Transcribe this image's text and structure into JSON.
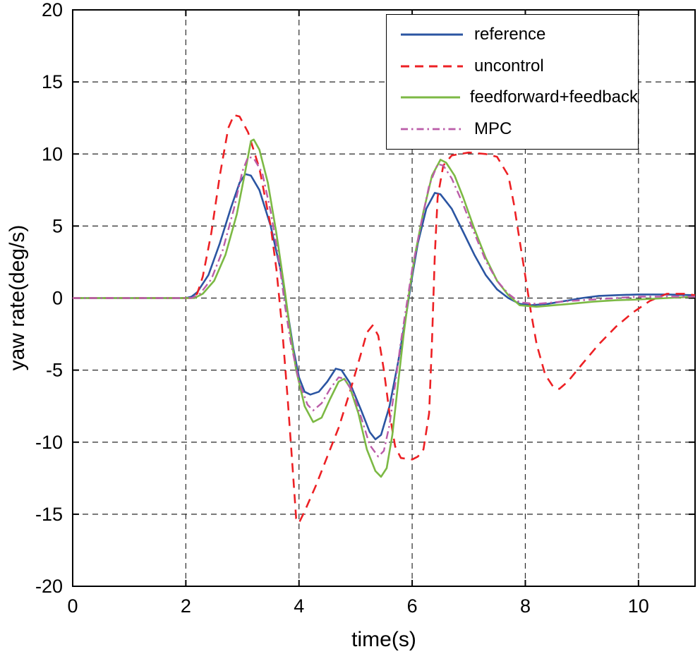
{
  "figure": {
    "background": "#ffffff"
  },
  "chart_data": {
    "type": "line",
    "title": "",
    "xlabel": "time(s)",
    "ylabel": "yaw rate(deg/s)",
    "xlim": [
      0,
      11
    ],
    "ylim": [
      -20,
      20
    ],
    "xticks": [
      0,
      2,
      4,
      6,
      8,
      10
    ],
    "yticks": [
      -20,
      -15,
      -10,
      -5,
      0,
      5,
      10,
      15,
      20
    ],
    "grid": true,
    "grid_style": "dashed",
    "legend_position": "top-right",
    "series": [
      {
        "name": "reference",
        "color": "#2b55a2",
        "style": "solid",
        "width": 2.6,
        "points": [
          [
            0,
            0
          ],
          [
            1.0,
            0
          ],
          [
            2.0,
            0
          ],
          [
            2.1,
            0.1
          ],
          [
            2.2,
            0.4
          ],
          [
            2.4,
            1.6
          ],
          [
            2.6,
            3.8
          ],
          [
            2.8,
            6.3
          ],
          [
            2.95,
            8.0
          ],
          [
            3.05,
            8.6
          ],
          [
            3.15,
            8.5
          ],
          [
            3.3,
            7.5
          ],
          [
            3.5,
            5.0
          ],
          [
            3.7,
            1.5
          ],
          [
            3.8,
            -1.0
          ],
          [
            3.9,
            -3.5
          ],
          [
            4.0,
            -5.5
          ],
          [
            4.1,
            -6.5
          ],
          [
            4.2,
            -6.7
          ],
          [
            4.35,
            -6.5
          ],
          [
            4.5,
            -5.8
          ],
          [
            4.65,
            -4.9
          ],
          [
            4.75,
            -5.0
          ],
          [
            4.9,
            -5.9
          ],
          [
            5.1,
            -7.8
          ],
          [
            5.25,
            -9.3
          ],
          [
            5.35,
            -9.8
          ],
          [
            5.45,
            -9.5
          ],
          [
            5.6,
            -7.5
          ],
          [
            5.75,
            -4.5
          ],
          [
            5.9,
            -1.0
          ],
          [
            6.0,
            1.5
          ],
          [
            6.1,
            3.8
          ],
          [
            6.25,
            6.2
          ],
          [
            6.4,
            7.3
          ],
          [
            6.5,
            7.2
          ],
          [
            6.7,
            6.2
          ],
          [
            6.9,
            4.6
          ],
          [
            7.1,
            3.0
          ],
          [
            7.3,
            1.6
          ],
          [
            7.5,
            0.6
          ],
          [
            7.7,
            0.0
          ],
          [
            7.9,
            -0.4
          ],
          [
            8.1,
            -0.5
          ],
          [
            8.4,
            -0.4
          ],
          [
            8.7,
            -0.2
          ],
          [
            9.0,
            0.0
          ],
          [
            9.3,
            0.15
          ],
          [
            9.6,
            0.2
          ],
          [
            10.0,
            0.25
          ],
          [
            10.5,
            0.25
          ],
          [
            11,
            0.2
          ]
        ]
      },
      {
        "name": "uncontrol",
        "color": "#ed2024",
        "style": "dashed",
        "width": 2.6,
        "points": [
          [
            0,
            0
          ],
          [
            1.0,
            0
          ],
          [
            2.1,
            0
          ],
          [
            2.2,
            0.3
          ],
          [
            2.3,
            1.5
          ],
          [
            2.45,
            4.5
          ],
          [
            2.6,
            8.5
          ],
          [
            2.75,
            11.8
          ],
          [
            2.85,
            12.7
          ],
          [
            2.95,
            12.6
          ],
          [
            3.1,
            11.5
          ],
          [
            3.3,
            9.0
          ],
          [
            3.5,
            5.0
          ],
          [
            3.6,
            2.0
          ],
          [
            3.7,
            -2.0
          ],
          [
            3.8,
            -7.0
          ],
          [
            3.9,
            -12.5
          ],
          [
            3.95,
            -15.3
          ],
          [
            4.0,
            -15.6
          ],
          [
            4.1,
            -14.8
          ],
          [
            4.3,
            -13.0
          ],
          [
            4.5,
            -11.0
          ],
          [
            4.7,
            -9.0
          ],
          [
            4.9,
            -6.5
          ],
          [
            5.1,
            -3.8
          ],
          [
            5.2,
            -2.4
          ],
          [
            5.3,
            -1.9
          ],
          [
            5.4,
            -2.6
          ],
          [
            5.5,
            -5.0
          ],
          [
            5.6,
            -8.0
          ],
          [
            5.7,
            -10.3
          ],
          [
            5.8,
            -11.1
          ],
          [
            6.0,
            -11.2
          ],
          [
            6.1,
            -11.0
          ],
          [
            6.2,
            -10.5
          ],
          [
            6.3,
            -8.0
          ],
          [
            6.35,
            -3.0
          ],
          [
            6.4,
            3.0
          ],
          [
            6.45,
            7.0
          ],
          [
            6.55,
            9.2
          ],
          [
            6.7,
            9.9
          ],
          [
            7.0,
            10.1
          ],
          [
            7.3,
            10.0
          ],
          [
            7.5,
            9.8
          ],
          [
            7.7,
            8.5
          ],
          [
            7.8,
            6.5
          ],
          [
            7.9,
            4.0
          ],
          [
            8.0,
            1.5
          ],
          [
            8.1,
            -1.0
          ],
          [
            8.2,
            -3.2
          ],
          [
            8.35,
            -5.3
          ],
          [
            8.5,
            -6.2
          ],
          [
            8.6,
            -6.3
          ],
          [
            8.75,
            -5.8
          ],
          [
            9.0,
            -4.6
          ],
          [
            9.3,
            -3.2
          ],
          [
            9.6,
            -2.0
          ],
          [
            9.9,
            -1.0
          ],
          [
            10.2,
            -0.2
          ],
          [
            10.5,
            0.3
          ],
          [
            10.8,
            0.3
          ],
          [
            11,
            0.2
          ]
        ]
      },
      {
        "name": "feedforward+feedback",
        "color": "#7cb944",
        "style": "solid",
        "width": 2.6,
        "points": [
          [
            0,
            0
          ],
          [
            1.0,
            0
          ],
          [
            2.15,
            0
          ],
          [
            2.3,
            0.3
          ],
          [
            2.5,
            1.2
          ],
          [
            2.7,
            3.0
          ],
          [
            2.9,
            5.8
          ],
          [
            3.05,
            8.8
          ],
          [
            3.15,
            10.9
          ],
          [
            3.2,
            11.0
          ],
          [
            3.3,
            10.3
          ],
          [
            3.45,
            8.0
          ],
          [
            3.6,
            4.5
          ],
          [
            3.75,
            0.5
          ],
          [
            3.85,
            -2.5
          ],
          [
            3.95,
            -5.0
          ],
          [
            4.1,
            -7.5
          ],
          [
            4.25,
            -8.6
          ],
          [
            4.4,
            -8.3
          ],
          [
            4.55,
            -7.0
          ],
          [
            4.7,
            -5.8
          ],
          [
            4.8,
            -5.6
          ],
          [
            4.9,
            -6.2
          ],
          [
            5.05,
            -8.0
          ],
          [
            5.2,
            -10.5
          ],
          [
            5.35,
            -12.0
          ],
          [
            5.45,
            -12.4
          ],
          [
            5.55,
            -11.8
          ],
          [
            5.65,
            -9.5
          ],
          [
            5.75,
            -6.0
          ],
          [
            5.85,
            -2.5
          ],
          [
            5.95,
            0.5
          ],
          [
            6.05,
            3.0
          ],
          [
            6.2,
            6.0
          ],
          [
            6.35,
            8.5
          ],
          [
            6.5,
            9.6
          ],
          [
            6.6,
            9.4
          ],
          [
            6.75,
            8.5
          ],
          [
            6.9,
            7.0
          ],
          [
            7.1,
            4.8
          ],
          [
            7.3,
            2.8
          ],
          [
            7.5,
            1.2
          ],
          [
            7.7,
            0.2
          ],
          [
            7.9,
            -0.5
          ],
          [
            8.2,
            -0.6
          ],
          [
            8.5,
            -0.5
          ],
          [
            8.8,
            -0.4
          ],
          [
            9.2,
            -0.25
          ],
          [
            9.6,
            -0.15
          ],
          [
            10.0,
            -0.1
          ],
          [
            10.5,
            0.0
          ],
          [
            11,
            0.1
          ]
        ]
      },
      {
        "name": "MPC",
        "color": "#bb5ca8",
        "style": "dashdot",
        "width": 2.4,
        "points": [
          [
            0,
            0
          ],
          [
            1.0,
            0
          ],
          [
            2.1,
            0
          ],
          [
            2.25,
            0.3
          ],
          [
            2.45,
            1.3
          ],
          [
            2.65,
            3.3
          ],
          [
            2.85,
            6.2
          ],
          [
            3.0,
            8.8
          ],
          [
            3.1,
            9.8
          ],
          [
            3.2,
            9.7
          ],
          [
            3.35,
            8.7
          ],
          [
            3.5,
            6.0
          ],
          [
            3.65,
            2.5
          ],
          [
            3.75,
            -0.5
          ],
          [
            3.85,
            -3.0
          ],
          [
            4.0,
            -5.8
          ],
          [
            4.15,
            -7.4
          ],
          [
            4.25,
            -7.8
          ],
          [
            4.4,
            -7.3
          ],
          [
            4.55,
            -6.3
          ],
          [
            4.7,
            -5.5
          ],
          [
            4.8,
            -5.6
          ],
          [
            4.95,
            -6.5
          ],
          [
            5.1,
            -8.3
          ],
          [
            5.25,
            -10.2
          ],
          [
            5.4,
            -11.0
          ],
          [
            5.5,
            -10.6
          ],
          [
            5.6,
            -8.8
          ],
          [
            5.7,
            -6.0
          ],
          [
            5.8,
            -3.0
          ],
          [
            5.9,
            -0.5
          ],
          [
            6.0,
            2.0
          ],
          [
            6.15,
            5.0
          ],
          [
            6.3,
            7.8
          ],
          [
            6.45,
            9.3
          ],
          [
            6.55,
            9.2
          ],
          [
            6.7,
            8.3
          ],
          [
            6.9,
            6.5
          ],
          [
            7.1,
            4.5
          ],
          [
            7.3,
            2.6
          ],
          [
            7.5,
            1.2
          ],
          [
            7.7,
            0.3
          ],
          [
            7.9,
            -0.3
          ],
          [
            8.2,
            -0.4
          ],
          [
            8.5,
            -0.3
          ],
          [
            8.8,
            -0.2
          ],
          [
            9.2,
            -0.1
          ],
          [
            9.6,
            0.0
          ],
          [
            10.0,
            0.1
          ],
          [
            10.5,
            0.1
          ],
          [
            11,
            0.1
          ]
        ]
      }
    ]
  }
}
